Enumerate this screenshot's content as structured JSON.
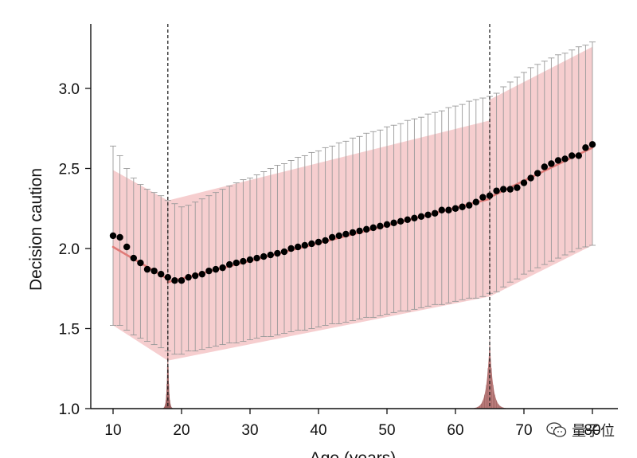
{
  "chart_data": {
    "type": "scatter",
    "xlabel": "Age (years)",
    "ylabel": "Decision caution",
    "xlim": [
      7,
      83
    ],
    "ylim": [
      1.0,
      3.4
    ],
    "xticks": [
      10,
      20,
      30,
      40,
      50,
      60,
      70,
      80
    ],
    "yticks": [
      1.0,
      1.5,
      2.0,
      2.5,
      3.0
    ],
    "xtick_labels": [
      "10",
      "20",
      "30",
      "40",
      "50",
      "60",
      "70",
      "80"
    ],
    "ytick_labels": [
      "1.0",
      "1.5",
      "2.0",
      "2.5",
      "3.0"
    ],
    "breakpoints": [
      18,
      65
    ],
    "points": {
      "x": [
        10,
        11,
        12,
        13,
        14,
        15,
        16,
        17,
        18,
        19,
        20,
        21,
        22,
        23,
        24,
        25,
        26,
        27,
        28,
        29,
        30,
        31,
        32,
        33,
        34,
        35,
        36,
        37,
        38,
        39,
        40,
        41,
        42,
        43,
        44,
        45,
        46,
        47,
        48,
        49,
        50,
        51,
        52,
        53,
        54,
        55,
        56,
        57,
        58,
        59,
        60,
        61,
        62,
        63,
        64,
        65,
        66,
        67,
        68,
        69,
        70,
        71,
        72,
        73,
        74,
        75,
        76,
        77,
        78,
        79,
        80
      ],
      "y": [
        2.08,
        2.07,
        2.01,
        1.94,
        1.91,
        1.87,
        1.86,
        1.84,
        1.82,
        1.8,
        1.8,
        1.82,
        1.83,
        1.84,
        1.86,
        1.87,
        1.88,
        1.9,
        1.91,
        1.92,
        1.93,
        1.94,
        1.95,
        1.96,
        1.97,
        1.98,
        2.0,
        2.01,
        2.02,
        2.03,
        2.04,
        2.05,
        2.07,
        2.08,
        2.09,
        2.1,
        2.11,
        2.12,
        2.13,
        2.14,
        2.15,
        2.16,
        2.17,
        2.18,
        2.19,
        2.2,
        2.21,
        2.22,
        2.24,
        2.24,
        2.25,
        2.26,
        2.27,
        2.29,
        2.32,
        2.33,
        2.36,
        2.37,
        2.37,
        2.38,
        2.41,
        2.44,
        2.47,
        2.51,
        2.53,
        2.55,
        2.56,
        2.58,
        2.58,
        2.63,
        2.65
      ]
    },
    "error_bars": {
      "lower": [
        1.52,
        1.52,
        1.49,
        1.46,
        1.44,
        1.42,
        1.4,
        1.38,
        1.36,
        1.34,
        1.34,
        1.36,
        1.36,
        1.37,
        1.38,
        1.39,
        1.4,
        1.41,
        1.41,
        1.42,
        1.43,
        1.44,
        1.45,
        1.45,
        1.46,
        1.47,
        1.48,
        1.49,
        1.49,
        1.5,
        1.51,
        1.52,
        1.53,
        1.53,
        1.54,
        1.55,
        1.56,
        1.57,
        1.57,
        1.58,
        1.59,
        1.6,
        1.61,
        1.61,
        1.62,
        1.63,
        1.64,
        1.65,
        1.65,
        1.66,
        1.67,
        1.68,
        1.69,
        1.69,
        1.7,
        1.72,
        1.73,
        1.76,
        1.79,
        1.81,
        1.84,
        1.86,
        1.88,
        1.9,
        1.92,
        1.94,
        1.96,
        1.98,
        2.0,
        2.01,
        2.02
      ],
      "upper": [
        2.64,
        2.58,
        2.5,
        2.44,
        2.4,
        2.37,
        2.35,
        2.33,
        2.3,
        2.28,
        2.26,
        2.27,
        2.29,
        2.31,
        2.33,
        2.35,
        2.37,
        2.39,
        2.41,
        2.43,
        2.44,
        2.46,
        2.48,
        2.5,
        2.52,
        2.53,
        2.55,
        2.57,
        2.58,
        2.6,
        2.61,
        2.63,
        2.64,
        2.66,
        2.67,
        2.69,
        2.7,
        2.72,
        2.73,
        2.74,
        2.76,
        2.77,
        2.78,
        2.8,
        2.81,
        2.82,
        2.84,
        2.85,
        2.86,
        2.88,
        2.89,
        2.9,
        2.92,
        2.93,
        2.94,
        2.95,
        2.97,
        3.01,
        3.04,
        3.07,
        3.1,
        3.13,
        3.15,
        3.17,
        3.19,
        3.21,
        3.22,
        3.24,
        3.26,
        3.27,
        3.29
      ]
    },
    "fit_segments": [
      {
        "x": [
          10,
          18
        ],
        "y": [
          2.01,
          1.81
        ]
      },
      {
        "x": [
          18,
          65
        ],
        "y": [
          1.79,
          2.31
        ]
      },
      {
        "x": [
          65,
          80
        ],
        "y": [
          2.32,
          2.63
        ]
      }
    ],
    "ci_bands": [
      {
        "x": [
          10,
          18
        ],
        "lower": [
          1.52,
          1.3
        ],
        "upper": [
          2.49,
          2.3
        ]
      },
      {
        "x": [
          18,
          65
        ],
        "lower": [
          1.3,
          1.7
        ],
        "upper": [
          2.3,
          2.8
        ]
      },
      {
        "x": [
          65,
          80
        ],
        "lower": [
          1.7,
          2.02
        ],
        "upper": [
          2.93,
          3.26
        ]
      }
    ],
    "breakpoint_distributions": [
      {
        "center": 18,
        "height": 0.45,
        "spread": 0.22
      },
      {
        "center": 65,
        "height": 0.43,
        "spread": 0.75
      }
    ],
    "colors": {
      "points": "#000000",
      "fit_line": "#e07b78",
      "ci_band": "#f4c6c7",
      "error_bars": "#999999",
      "breakpoint_line": "#111111",
      "histogram": "#b5706f"
    }
  },
  "watermark": {
    "icon": "wechat-logo-icon",
    "text": "量子位"
  }
}
